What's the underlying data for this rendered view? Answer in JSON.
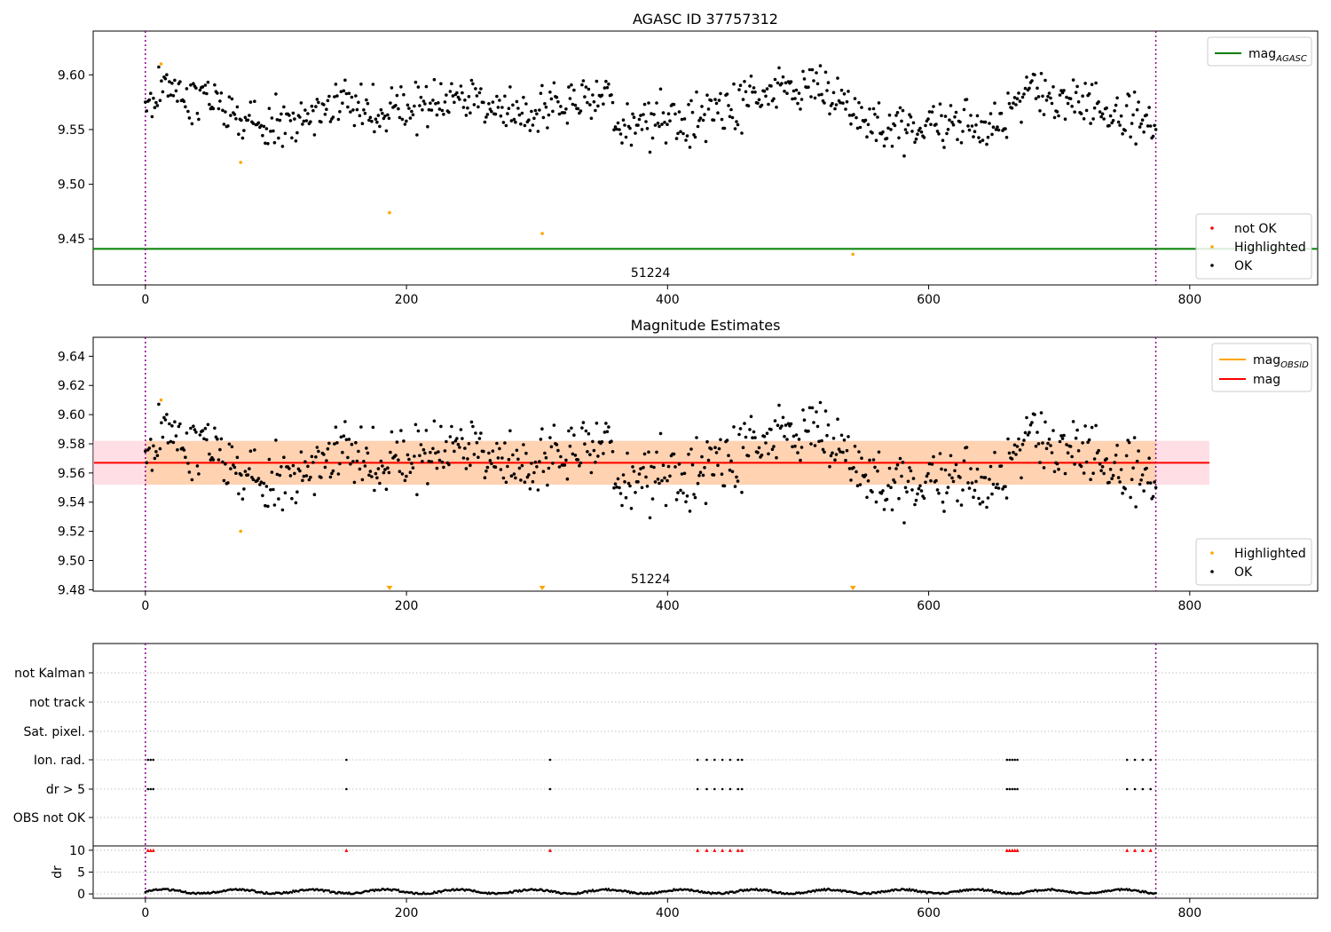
{
  "chart_data": [
    {
      "type": "scatter",
      "title": "AGASC ID 37757312",
      "annotation": "51224",
      "xlim": [
        -40,
        898
      ],
      "ylim": [
        9.408,
        9.64
      ],
      "xticks": [
        0,
        200,
        400,
        600,
        800
      ],
      "yticks": [
        9.45,
        9.5,
        9.55,
        9.6
      ],
      "ytick_labels": [
        "9.45",
        "9.50",
        "9.55",
        "9.60"
      ],
      "vlines": [
        0,
        774
      ],
      "hline": {
        "name": "mag_AGASC",
        "y": 9.441,
        "color": "#008000"
      },
      "legend_lines": [
        {
          "label": "mag",
          "sub": "AGASC",
          "color": "#008000"
        }
      ],
      "legend_points": [
        {
          "label": "not OK",
          "color": "#ff0000"
        },
        {
          "label": "Highlighted",
          "color": "#ffa500"
        },
        {
          "label": "OK",
          "color": "#000000"
        }
      ],
      "highlighted": [
        [
          12,
          9.61
        ],
        [
          73,
          9.52
        ],
        [
          187,
          9.474
        ],
        [
          304,
          9.455
        ],
        [
          542,
          9.436
        ]
      ],
      "ok_series": {
        "x_range": [
          0,
          774
        ],
        "count": 760,
        "mean": 9.567,
        "spread": 0.012,
        "trend_knots": [
          [
            0,
            9.575
          ],
          [
            15,
            9.592
          ],
          [
            40,
            9.575
          ],
          [
            70,
            9.56
          ],
          [
            95,
            9.553
          ],
          [
            120,
            9.558
          ],
          [
            150,
            9.575
          ],
          [
            175,
            9.565
          ],
          [
            200,
            9.57
          ],
          [
            240,
            9.572
          ],
          [
            270,
            9.57
          ],
          [
            300,
            9.565
          ],
          [
            330,
            9.575
          ],
          [
            355,
            9.585
          ],
          [
            360,
            9.55
          ],
          [
            400,
            9.558
          ],
          [
            440,
            9.567
          ],
          [
            470,
            9.58
          ],
          [
            495,
            9.59
          ],
          [
            525,
            9.58
          ],
          [
            545,
            9.565
          ],
          [
            560,
            9.55
          ],
          [
            600,
            9.553
          ],
          [
            650,
            9.552
          ],
          [
            665,
            9.575
          ],
          [
            700,
            9.585
          ],
          [
            740,
            9.565
          ],
          [
            774,
            9.557
          ]
        ]
      }
    },
    {
      "type": "scatter",
      "title": "Magnitude Estimates",
      "annotation": "51224",
      "xlim": [
        -40,
        898
      ],
      "ylim": [
        9.479,
        9.653
      ],
      "xticks": [
        0,
        200,
        400,
        600,
        800
      ],
      "yticks": [
        9.48,
        9.5,
        9.52,
        9.54,
        9.56,
        9.58,
        9.6,
        9.62,
        9.64
      ],
      "ytick_labels": [
        "9.48",
        "9.50",
        "9.52",
        "9.54",
        "9.56",
        "9.58",
        "9.60",
        "9.62",
        "9.64"
      ],
      "vlines": [
        0,
        774
      ],
      "band_pink": {
        "x": [
          -40,
          815
        ],
        "y": [
          9.552,
          9.582
        ],
        "color": "#ffc0cb"
      },
      "band_orange": {
        "x": [
          0,
          774
        ],
        "y": [
          9.552,
          9.582
        ],
        "color": "#ffa500"
      },
      "mag_line": {
        "name": "mag",
        "y": 9.567,
        "x": [
          -40,
          815
        ],
        "color": "#ff0000"
      },
      "mag_obsid_line": {
        "name": "mag_OBSID",
        "y": 9.567,
        "x": [
          0,
          774
        ],
        "color": "#ffa500"
      },
      "legend_lines": [
        {
          "label": "mag",
          "sub": "OBSID",
          "color": "#ffa500"
        },
        {
          "label": "mag",
          "sub": "",
          "color": "#ff0000"
        }
      ],
      "legend_points": [
        {
          "label": "Highlighted",
          "color": "#ffa500"
        },
        {
          "label": "OK",
          "color": "#000000"
        }
      ],
      "highlighted": [
        [
          12,
          9.61
        ],
        [
          73,
          9.52
        ]
      ],
      "off_scale_markers_x": [
        187,
        304,
        542
      ]
    },
    {
      "type": "scatter",
      "xlim": [
        -40,
        898
      ],
      "flag_rows": [
        "not Kalman",
        "not track",
        "Sat. pixel.",
        "Ion. rad.",
        "dr > 5",
        "OBS not OK"
      ],
      "flag_events": {
        "Ion. rad.": [
          2,
          4,
          6,
          154,
          310,
          423,
          430,
          436,
          442,
          448,
          454,
          457,
          660,
          662,
          664,
          666,
          668,
          752,
          758,
          764,
          770
        ],
        "dr > 5": [
          2,
          4,
          6,
          154,
          310,
          423,
          430,
          436,
          442,
          448,
          454,
          457,
          660,
          662,
          664,
          666,
          668,
          752,
          758,
          764,
          770
        ]
      },
      "dr_axis": {
        "label": "dr",
        "ylim": [
          -1,
          11
        ],
        "yticks": [
          0,
          5,
          10
        ]
      },
      "dr_high_x": [
        2,
        4,
        6,
        154,
        310,
        423,
        430,
        436,
        442,
        448,
        454,
        457,
        660,
        662,
        664,
        666,
        668,
        752,
        758,
        764,
        770
      ],
      "dr_high_value": 10,
      "xticks": [
        0,
        200,
        400,
        600,
        800
      ],
      "vlines": [
        0,
        774
      ]
    }
  ]
}
